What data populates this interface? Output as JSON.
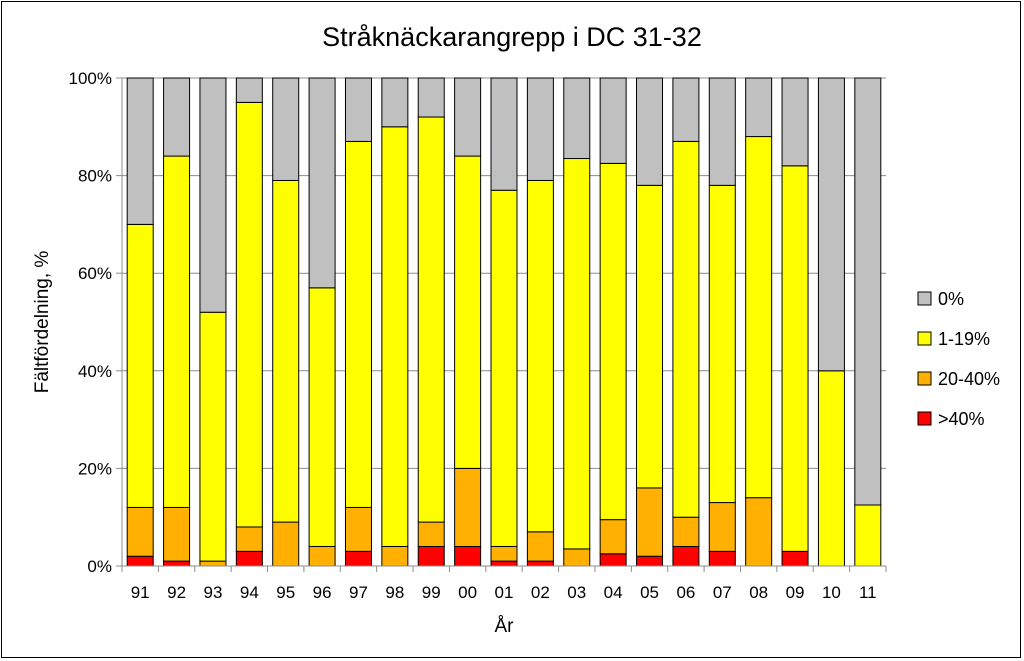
{
  "chart_data": {
    "type": "bar",
    "stacked": "percent",
    "title": "Stråknäckarangrepp i DC 31-32",
    "xlabel": "År",
    "ylabel": "Fältfördelning, %",
    "ylim": [
      0,
      100
    ],
    "ytick_labels": [
      "0%",
      "20%",
      "40%",
      "60%",
      "80%",
      "100%"
    ],
    "grid": true,
    "legend_position": "right",
    "categories": [
      "91",
      "92",
      "93",
      "94",
      "95",
      "96",
      "97",
      "98",
      "99",
      "00",
      "01",
      "02",
      "03",
      "04",
      "05",
      "06",
      "07",
      "08",
      "09",
      "10",
      "11"
    ],
    "series": [
      {
        "name": ">40%",
        "color": "#ff0000",
        "values": [
          2,
          1,
          0,
          3,
          0,
          0,
          3,
          0,
          4,
          4,
          1,
          1,
          0,
          2.5,
          2,
          4,
          3,
          0,
          3,
          0,
          0
        ]
      },
      {
        "name": "20-40%",
        "color": "#ffb000",
        "values": [
          10,
          11,
          1,
          5,
          9,
          4,
          9,
          4,
          5,
          16,
          3,
          6,
          3.5,
          7,
          14,
          6,
          10,
          14,
          0,
          0,
          0
        ]
      },
      {
        "name": "1-19%",
        "color": "#ffff00",
        "values": [
          58,
          72,
          51,
          87,
          70,
          53,
          75,
          86,
          83,
          64,
          73,
          72,
          80,
          73,
          62,
          77,
          65,
          74,
          79,
          40,
          12.5
        ]
      },
      {
        "name": "0%",
        "color": "#c0c0c0",
        "values": [
          30,
          16,
          48,
          5,
          21,
          43,
          13,
          10,
          8,
          16,
          23,
          21,
          16.5,
          17.5,
          22,
          13,
          22,
          12,
          18,
          60,
          87.5
        ]
      }
    ],
    "legend_order": [
      "0%",
      "1-19%",
      "20-40%",
      ">40%"
    ]
  }
}
